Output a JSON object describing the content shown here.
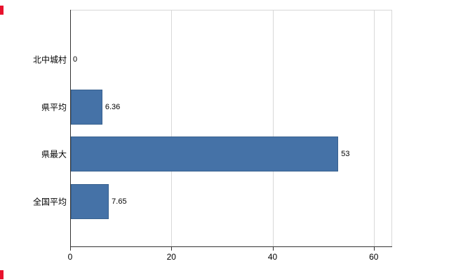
{
  "chart_data": {
    "type": "bar",
    "orientation": "horizontal",
    "title": "",
    "xlabel": "",
    "ylabel": "",
    "categories": [
      "北中城村",
      "県平均",
      "県最大",
      "全国平均"
    ],
    "values": [
      0,
      6.36,
      53,
      7.65
    ],
    "value_labels": [
      "0",
      "6.36",
      "53",
      "7.65"
    ],
    "x_ticks": [
      0,
      20,
      40,
      60
    ],
    "xlim": [
      0,
      63.5
    ],
    "grid": true,
    "legend_position": "none",
    "bar_color": "#4572a7",
    "bar_border_color": "#38618f",
    "grid_color": "#d8d8d8",
    "axis_color": "#333333",
    "label_color": "#000000"
  },
  "artifacts": {
    "color": "#e8112d"
  }
}
